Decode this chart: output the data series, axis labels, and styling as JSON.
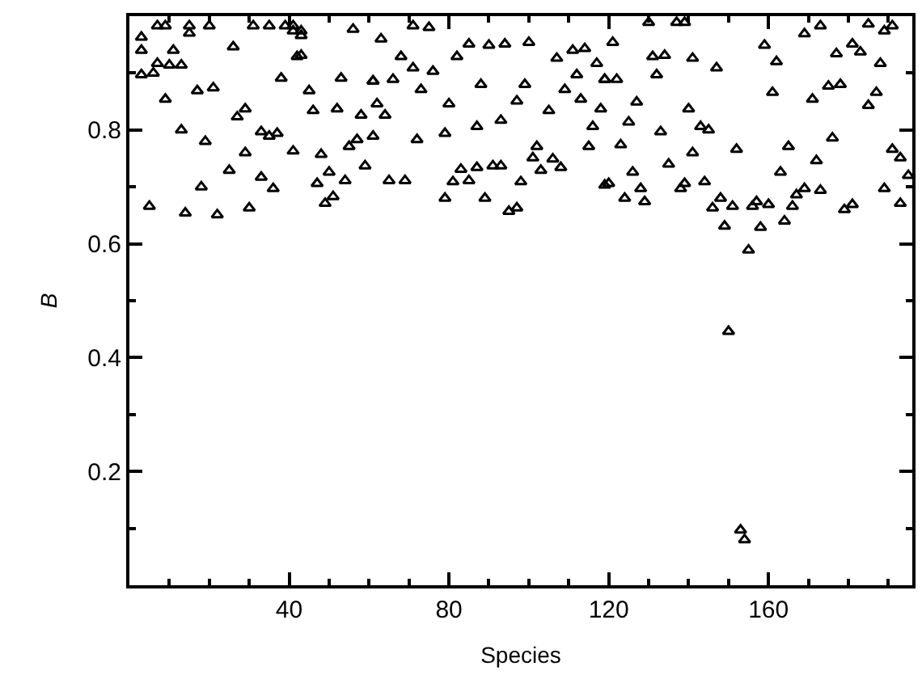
{
  "chart_data": {
    "type": "scatter",
    "xlabel": "Species",
    "ylabel": "B",
    "marker": "triangle",
    "xlim": [
      0,
      196
    ],
    "ylim": [
      0,
      1
    ],
    "xticks": [
      {
        "value": 10,
        "label": null
      },
      {
        "value": 20,
        "label": null
      },
      {
        "value": 30,
        "label": null
      },
      40,
      {
        "value": 50,
        "label": null
      },
      {
        "value": 60,
        "label": null
      },
      {
        "value": 70,
        "label": null
      },
      80,
      {
        "value": 90,
        "label": null
      },
      {
        "value": 100,
        "label": null
      },
      {
        "value": 110,
        "label": null
      },
      120,
      {
        "value": 130,
        "label": null
      },
      {
        "value": 140,
        "label": null
      },
      {
        "value": 150,
        "label": null
      },
      160,
      {
        "value": 170,
        "label": null
      },
      {
        "value": 180,
        "label": null
      },
      {
        "value": 190,
        "label": null
      }
    ],
    "yticks": [
      {
        "value": 0.1,
        "label": null
      },
      0.2,
      {
        "value": 0.3,
        "label": null
      },
      0.4,
      {
        "value": 0.5,
        "label": null
      },
      0.6,
      {
        "value": 0.7,
        "label": null
      },
      0.8,
      {
        "value": 0.9,
        "label": null
      }
    ],
    "series": [
      {
        "color": "#000000",
        "x": [
          3,
          3,
          3,
          5,
          6,
          7,
          7,
          9,
          9,
          10,
          11,
          13,
          13,
          14,
          15,
          15,
          17,
          18,
          19,
          20,
          21,
          22,
          25,
          26,
          27,
          29,
          29,
          30,
          31,
          33,
          33,
          35,
          35,
          36,
          37,
          38,
          39,
          41,
          41,
          41,
          42,
          43,
          43,
          43,
          45,
          46,
          47,
          48,
          49,
          50,
          51,
          52,
          53,
          54,
          55,
          56,
          57,
          58,
          59,
          61,
          61,
          61,
          62,
          63,
          64,
          65,
          66,
          68,
          69,
          71,
          71,
          72,
          73,
          75,
          76,
          79,
          79,
          80,
          81,
          82,
          83,
          85,
          85,
          87,
          87,
          88,
          89,
          90,
          91,
          93,
          93,
          94,
          95,
          97,
          97,
          98,
          99,
          100,
          101,
          102,
          103,
          105,
          106,
          107,
          108,
          109,
          111,
          112,
          113,
          114,
          115,
          116,
          117,
          118,
          119,
          119,
          119,
          120,
          121,
          122,
          123,
          124,
          125,
          126,
          127,
          128,
          129,
          130,
          131,
          132,
          133,
          134,
          135,
          137,
          138,
          139,
          139,
          140,
          141,
          141,
          143,
          144,
          145,
          146,
          147,
          148,
          149,
          150,
          151,
          152,
          153,
          154,
          155,
          156,
          157,
          158,
          159,
          160,
          161,
          162,
          163,
          164,
          165,
          166,
          167,
          169,
          169,
          171,
          172,
          173,
          173,
          175,
          176,
          177,
          178,
          179,
          181,
          181,
          183,
          185,
          185,
          187,
          188,
          189,
          189,
          191,
          191,
          193,
          193,
          195
        ],
        "values": [
          0.963,
          0.94,
          0.897,
          0.666,
          0.9,
          0.917,
          0.983,
          0.983,
          0.854,
          0.914,
          0.94,
          0.914,
          0.8,
          0.654,
          0.983,
          0.97,
          0.869,
          0.7,
          0.78,
          0.983,
          0.874,
          0.651,
          0.729,
          0.946,
          0.823,
          0.837,
          0.76,
          0.663,
          0.983,
          0.797,
          0.717,
          0.789,
          0.983,
          0.697,
          0.794,
          0.891,
          0.983,
          0.763,
          0.983,
          0.974,
          0.929,
          0.966,
          0.931,
          0.974,
          0.869,
          0.834,
          0.706,
          0.757,
          0.671,
          0.726,
          0.683,
          0.837,
          0.891,
          0.711,
          0.771,
          0.977,
          0.783,
          0.826,
          0.737,
          0.886,
          0.789,
          0.886,
          0.846,
          0.96,
          0.826,
          0.711,
          0.889,
          0.929,
          0.711,
          0.983,
          0.909,
          0.783,
          0.871,
          0.98,
          0.903,
          0.794,
          0.68,
          0.846,
          0.709,
          0.929,
          0.731,
          0.951,
          0.711,
          0.734,
          0.806,
          0.88,
          0.68,
          0.949,
          0.737,
          0.817,
          0.737,
          0.951,
          0.657,
          0.851,
          0.663,
          0.709,
          0.88,
          0.954,
          0.751,
          0.771,
          0.729,
          0.834,
          0.749,
          0.926,
          0.734,
          0.871,
          0.94,
          0.897,
          0.854,
          0.943,
          0.771,
          0.806,
          0.917,
          0.837,
          0.889,
          0.889,
          0.703,
          0.706,
          0.954,
          0.889,
          0.774,
          0.68,
          0.814,
          0.726,
          0.849,
          0.697,
          0.674,
          0.989,
          0.929,
          0.897,
          0.797,
          0.931,
          0.74,
          0.989,
          0.697,
          0.989,
          0.706,
          0.837,
          0.926,
          0.76,
          0.806,
          0.709,
          0.8,
          0.663,
          0.909,
          0.68,
          0.631,
          0.446,
          0.666,
          0.766,
          0.097,
          0.08,
          0.589,
          0.666,
          0.674,
          0.629,
          0.949,
          0.669,
          0.866,
          0.92,
          0.726,
          0.64,
          0.771,
          0.666,
          0.686,
          0.969,
          0.697,
          0.854,
          0.746,
          0.983,
          0.694,
          0.877,
          0.786,
          0.934,
          0.88,
          0.66,
          0.951,
          0.669,
          0.937,
          0.843,
          0.986,
          0.866,
          0.917,
          0.974,
          0.697,
          0.983,
          0.766,
          0.751,
          0.671,
          0.72
        ]
      }
    ]
  }
}
